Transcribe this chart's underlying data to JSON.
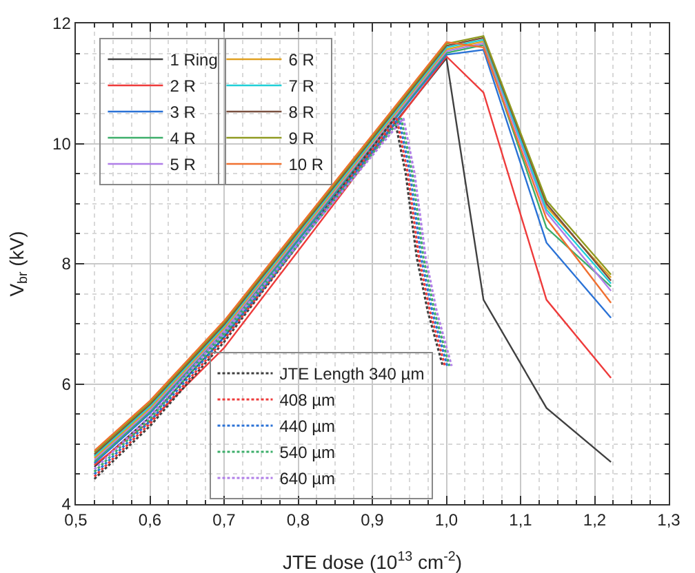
{
  "chart_data": {
    "type": "line",
    "xlabel": "JTE dose (10$^{13}$ cm$^{-2}$)",
    "ylabel": "V$_{br}$ (kV)",
    "xlim": [
      0.5,
      1.3
    ],
    "ylim": [
      4,
      12
    ],
    "xticks": [
      {
        "value": 0.5,
        "label": "0,5"
      },
      {
        "value": 0.6,
        "label": "0,6"
      },
      {
        "value": 0.7,
        "label": "0,7"
      },
      {
        "value": 0.8,
        "label": "0,8"
      },
      {
        "value": 0.9,
        "label": "0,9"
      },
      {
        "value": 1.0,
        "label": "1,0"
      },
      {
        "value": 1.1,
        "label": "1,1"
      },
      {
        "value": 1.2,
        "label": "1,2"
      },
      {
        "value": 1.3,
        "label": "1,3"
      }
    ],
    "yticks": [
      4,
      6,
      8,
      10,
      12
    ],
    "grid": true,
    "legend": "left",
    "marker": "none",
    "series": [
      {
        "name": "1 Ring",
        "color": "#404040",
        "x": [
          0.525,
          0.6,
          0.7,
          1.0,
          1.05,
          1.135,
          1.222
        ],
        "values": [
          4.62,
          5.45,
          6.78,
          11.42,
          7.4,
          5.6,
          4.7
        ]
      },
      {
        "name": "2 R",
        "color": "#ee3b3b",
        "x": [
          0.525,
          0.6,
          0.7,
          1.0,
          1.05,
          1.135,
          1.222
        ],
        "values": [
          4.65,
          5.38,
          6.6,
          11.45,
          10.85,
          7.4,
          6.1
        ]
      },
      {
        "name": "3 R",
        "color": "#2a72d6",
        "x": [
          0.525,
          0.6,
          0.7,
          1.0,
          1.05,
          1.135,
          1.222
        ],
        "values": [
          4.68,
          5.51,
          6.84,
          11.48,
          11.56,
          8.35,
          7.1
        ]
      },
      {
        "name": "4 R",
        "color": "#3cae6a",
        "x": [
          0.525,
          0.6,
          0.7,
          1.0,
          1.05,
          1.135,
          1.222
        ],
        "values": [
          4.71,
          5.54,
          6.87,
          11.51,
          11.64,
          8.6,
          7.62
        ]
      },
      {
        "name": "5 R",
        "color": "#b07ee8",
        "x": [
          0.525,
          0.6,
          0.7,
          1.0,
          1.05,
          1.135,
          1.222
        ],
        "values": [
          4.74,
          5.57,
          6.9,
          11.54,
          11.67,
          8.85,
          7.55
        ]
      },
      {
        "name": "6 R",
        "color": "#e0a020",
        "x": [
          0.525,
          0.6,
          0.7,
          1.0,
          1.05,
          1.135,
          1.222
        ],
        "values": [
          4.77,
          5.6,
          6.93,
          11.57,
          11.7,
          8.95,
          7.77
        ]
      },
      {
        "name": "7 R",
        "color": "#20d0d8",
        "x": [
          0.525,
          0.6,
          0.7,
          1.0,
          1.05,
          1.135,
          1.222
        ],
        "values": [
          4.8,
          5.63,
          6.96,
          11.6,
          11.73,
          8.9,
          7.67
        ]
      },
      {
        "name": "8 R",
        "color": "#7a5040",
        "x": [
          0.525,
          0.6,
          0.7,
          1.0,
          1.05,
          1.135,
          1.222
        ],
        "values": [
          4.83,
          5.66,
          6.99,
          11.63,
          11.76,
          9.0,
          7.72
        ]
      },
      {
        "name": "9 R",
        "color": "#8f9a20",
        "x": [
          0.525,
          0.6,
          0.7,
          1.0,
          1.05,
          1.135,
          1.222
        ],
        "values": [
          4.86,
          5.69,
          7.02,
          11.66,
          11.79,
          9.05,
          7.82
        ]
      },
      {
        "name": "10 R",
        "color": "#f07030",
        "x": [
          0.525,
          0.6,
          0.7,
          1.0,
          1.05,
          1.135,
          1.222
        ],
        "values": [
          4.89,
          5.72,
          7.05,
          11.69,
          11.6,
          8.75,
          7.35
        ]
      },
      {
        "name": "JTE Length 340 µm",
        "color": "#404040",
        "line_style": "dotted",
        "x": [
          0.525,
          0.6,
          0.7,
          0.93,
          0.945,
          0.96,
          0.975,
          0.995
        ],
        "values": [
          4.42,
          5.3,
          6.7,
          10.42,
          9.5,
          8.1,
          7.2,
          6.3
        ]
      },
      {
        "name": "408 µm",
        "color": "#ee3b3b",
        "line_style": "dotted",
        "x": [
          0.525,
          0.6,
          0.7,
          0.933,
          0.948,
          0.963,
          0.978,
          0.998
        ],
        "values": [
          4.46,
          5.34,
          6.74,
          10.42,
          9.5,
          8.1,
          7.2,
          6.3
        ]
      },
      {
        "name": "440 µm",
        "color": "#2a72d6",
        "line_style": "dotted",
        "x": [
          0.525,
          0.6,
          0.7,
          0.936,
          0.951,
          0.966,
          0.981,
          1.001
        ],
        "values": [
          4.5,
          5.38,
          6.78,
          10.42,
          9.5,
          8.1,
          7.2,
          6.3
        ]
      },
      {
        "name": "540 µm",
        "color": "#3cae6a",
        "line_style": "dotted",
        "x": [
          0.525,
          0.6,
          0.7,
          0.939,
          0.954,
          0.969,
          0.984,
          1.004
        ],
        "values": [
          4.54,
          5.42,
          6.82,
          10.42,
          9.5,
          8.1,
          7.2,
          6.3
        ]
      },
      {
        "name": "640 µm",
        "color": "#b07ee8",
        "line_style": "dotted",
        "x": [
          0.525,
          0.6,
          0.7,
          0.942,
          0.957,
          0.972,
          0.987,
          1.007
        ],
        "values": [
          4.58,
          5.46,
          6.86,
          10.42,
          9.5,
          8.1,
          7.2,
          6.3
        ]
      }
    ]
  }
}
